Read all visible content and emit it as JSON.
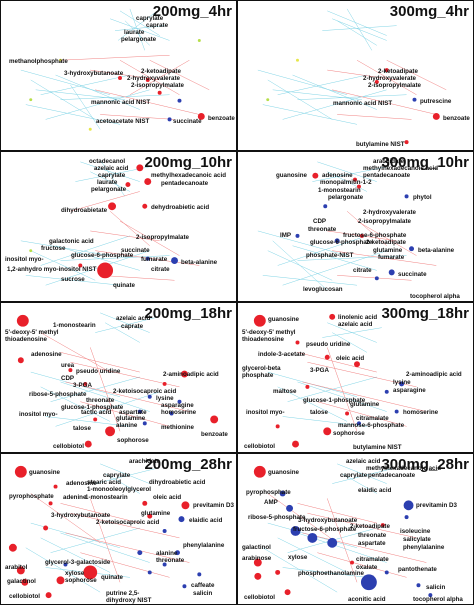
{
  "colors": {
    "edge_cyan": "#7fd3e6",
    "edge_red": "#f08080",
    "node_red": "#e8202a",
    "node_blue": "#2c3fb0",
    "node_yellow": "#e6e64a",
    "node_lime": "#b6de4a",
    "border": "#111111"
  },
  "panels": [
    {
      "id": "p1",
      "title": "200mg_4hr",
      "labels": [
        "caprylate",
        "caprate",
        "laurate",
        "pelargonate",
        "methanolphosphate",
        "3-hydroxybutanoate",
        "2-ketoadipate",
        "2-hydroxyvalerate",
        "2-isopropylmalate",
        "mannonic acid NIST",
        "acetoacetate NIST",
        "succinate",
        "benzoate"
      ]
    },
    {
      "id": "p2",
      "title": "300mg_4hr",
      "labels": [
        "2-ketoadipate",
        "2-hydroxyvalerate",
        "2-isopropylmalate",
        "mannonic acid NIST",
        "putrescine",
        "benzoate",
        "butylamine NIST"
      ]
    },
    {
      "id": "p3",
      "title": "200mg_10hr",
      "labels": [
        "octadecanol",
        "azelaic acid",
        "caprylate",
        "laurate",
        "pelargonate",
        "methylhexadecanoic acid",
        "pentadecanoate",
        "dihydroabietate",
        "dehydroabietic acid",
        "2-isopropylmalate",
        "galactonic acid",
        "fructose",
        "glucose-6-phosphate",
        "succinate",
        "inositol myo-",
        "fumarate",
        "1,2-anhydro myo-inositol NIST",
        "sucrose",
        "citrate",
        "quinate",
        "beta-alanine"
      ]
    },
    {
      "id": "p4",
      "title": "300mg_10hr",
      "labels": [
        "arachidate",
        "methylhexadecanoic acid",
        "guanosine",
        "adenosine",
        "pentadecanoate",
        "monopalmitin-1-2",
        "1-monostearin",
        "pelargonate",
        "phytol",
        "2-hydroxyvalerate",
        "CDP",
        "2-isopropylmalate",
        "IMP",
        "threonate",
        "fructose-6-phosphate",
        "glucose-6-phosphate",
        "2-ketoadipate",
        "glutamine",
        "fumarate",
        "beta-alanine",
        "phosphate-NIST",
        "citrate",
        "succinate",
        "levoglucosan",
        "tocopherol alpha"
      ]
    },
    {
      "id": "p5",
      "title": "200mg_18hr",
      "labels": [
        "azelaic acid",
        "caprate",
        "1-monostearin",
        "5'-deoxy-5' methyl thioadenosine",
        "adenosine",
        "urea",
        "pseudo uridine",
        "CDP",
        "3-PGA",
        "2-aminoadipic acid",
        "ribose-5-phosphate",
        "2-ketoisocaproic acid",
        "lysine",
        "threonate",
        "asparagine",
        "glucose-1-phosphate",
        "aspartate",
        "homoserine",
        "inositol myo-",
        "tactic acid",
        "glutamine",
        "alanine",
        "methionine",
        "talose",
        "cellobiotol",
        "sophorose",
        "benzoate"
      ]
    },
    {
      "id": "p6",
      "title": "300mg_18hr",
      "labels": [
        "linolenic acid",
        "azelaic acid",
        "guanosine",
        "5'-deoxy-5' methyl thioadenosine",
        "pseudo uridine",
        "indole-3-acetate",
        "oleic acid",
        "3-PGA",
        "glycerol-beta phosphate",
        "2-aminoadipic acid",
        "lysine",
        "asparagine",
        "homoserine",
        "glutamine",
        "maltose",
        "glucose-1-phosphate",
        "inositol myo-",
        "talose",
        "citramalate",
        "mannose-6-phosphate",
        "cellobiotol",
        "sophorose",
        "butylamine NIST"
      ]
    },
    {
      "id": "p7",
      "title": "200mg_28hr",
      "labels": [
        "guanosine",
        "arachidate",
        "adenosine",
        "caprylate",
        "stearic acid",
        "dihydroabietic acid",
        "pyrophosphate",
        "1-monooleoylglycerol",
        "adenine",
        "1-monostearin",
        "oleic acid",
        "previtamin D3",
        "glutamine",
        "elaidic acid",
        "3-hydroxybutanoate",
        "2-ketoisocaproic acid",
        "phenylalanine",
        "alanine",
        "threonate",
        "glycerol-3-galactoside",
        "cellobiotol",
        "galactinol",
        "sophorose",
        "arabitol",
        "xylose",
        "quinate",
        "caffeate",
        "salicin",
        "putrine 2,5-dihydroxy NIST"
      ]
    },
    {
      "id": "p8",
      "title": "300mg_28hr",
      "labels": [
        "guanosine",
        "azelaic acid",
        "methylhexadecanoic acid",
        "caprylate",
        "pentadecanoate",
        "pyrophosphate",
        "AMP",
        "elaidic acid",
        "previtamin D3",
        "ribose-5-phosphate",
        "3-hydroxybutanoate",
        "2-ketoadipate",
        "fructose-6-phosphate",
        "isoleucine",
        "threonate",
        "salicylate",
        "galactinol",
        "aspartate",
        "phenylalanine",
        "arabinose",
        "xylose",
        "pantothenate",
        "citramalate",
        "salicin",
        "oxalate",
        "phosphoethanolamine",
        "aconitic acid",
        "tocopherol alpha",
        "cellobiotol"
      ]
    }
  ]
}
